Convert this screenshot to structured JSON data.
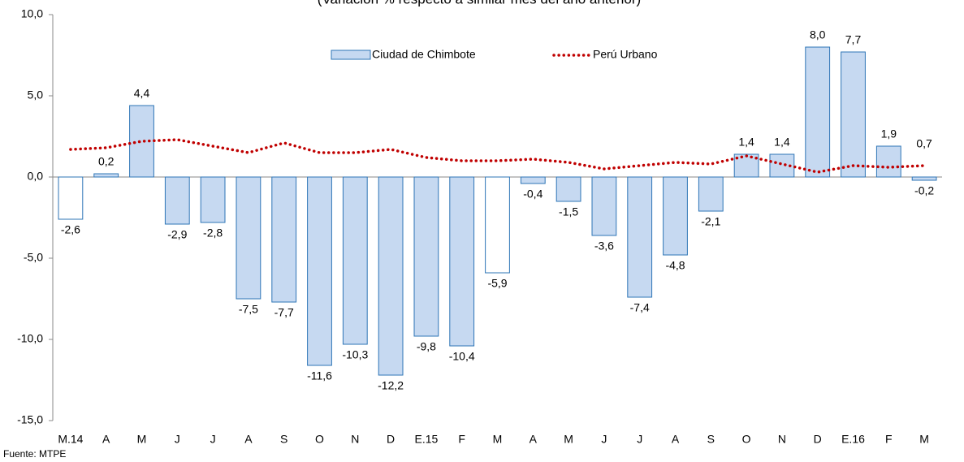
{
  "chart_data": {
    "type": "bar",
    "subtitle": "(Variación % respecto a similar mes del año anterior)",
    "source": "Fuente: MTPE",
    "categories": [
      "M.14",
      "A",
      "M",
      "J",
      "J",
      "A",
      "S",
      "O",
      "N",
      "D",
      "E.15",
      "F",
      "M",
      "A",
      "M",
      "J",
      "J",
      "A",
      "S",
      "O",
      "N",
      "D",
      "E.16",
      "F",
      "M"
    ],
    "series": [
      {
        "name": "Ciudad de Chimbote",
        "type": "bar",
        "color": "#c6d9f1",
        "stroke": "#2e75b6",
        "colors": [
          "#ffffff",
          "#c6d9f1",
          "#c6d9f1",
          "#c6d9f1",
          "#c6d9f1",
          "#c6d9f1",
          "#c6d9f1",
          "#c6d9f1",
          "#c6d9f1",
          "#c6d9f1",
          "#c6d9f1",
          "#c6d9f1",
          "#ffffff",
          "#c6d9f1",
          "#c6d9f1",
          "#c6d9f1",
          "#c6d9f1",
          "#c6d9f1",
          "#c6d9f1",
          "#c6d9f1",
          "#c6d9f1",
          "#c6d9f1",
          "#c6d9f1",
          "#c6d9f1",
          "#c6d9f1"
        ],
        "values": [
          -2.6,
          0.2,
          4.4,
          -2.9,
          -2.8,
          -7.5,
          -7.7,
          -11.6,
          -10.3,
          -12.2,
          -9.8,
          -10.4,
          -5.9,
          -0.4,
          -1.5,
          -3.6,
          -7.4,
          -4.8,
          -2.1,
          1.4,
          1.4,
          8.0,
          7.7,
          1.9,
          -0.2
        ],
        "value_labels": [
          "-2,6",
          "0,2",
          "4,4",
          "-2,9",
          "-2,8",
          "-7,5",
          "-7,7",
          "-11,6",
          "-10,3",
          "-12,2",
          "-9,8",
          "-10,4",
          "-5,9",
          "-0,4",
          "-1,5",
          "-3,6",
          "-7,4",
          "-4,8",
          "-2,1",
          "1,4",
          "1,4",
          "8,0",
          "7,7",
          "1,9",
          "-0,2"
        ]
      },
      {
        "name": "Perú Urbano",
        "type": "line",
        "color": "#c00000",
        "values": [
          1.7,
          1.8,
          2.2,
          2.3,
          1.9,
          1.5,
          2.1,
          1.5,
          1.5,
          1.7,
          1.2,
          1.0,
          1.0,
          1.1,
          0.9,
          0.5,
          0.7,
          0.9,
          0.8,
          1.3,
          0.8,
          0.3,
          0.7,
          0.6,
          0.7
        ],
        "value_labels": [
          null,
          null,
          null,
          null,
          null,
          null,
          null,
          null,
          null,
          null,
          null,
          null,
          null,
          null,
          null,
          null,
          null,
          null,
          null,
          null,
          null,
          null,
          null,
          null,
          "0,7"
        ]
      }
    ],
    "ylim": [
      -15,
      10
    ],
    "yticks": [
      {
        "value": -15,
        "label": "-15,0"
      },
      {
        "value": -10,
        "label": "-10,0"
      },
      {
        "value": -5,
        "label": "-5,0"
      },
      {
        "value": 0,
        "label": "0,0"
      },
      {
        "value": 5,
        "label": "5,0"
      },
      {
        "value": 10,
        "label": "10,0"
      }
    ],
    "grid": false
  }
}
